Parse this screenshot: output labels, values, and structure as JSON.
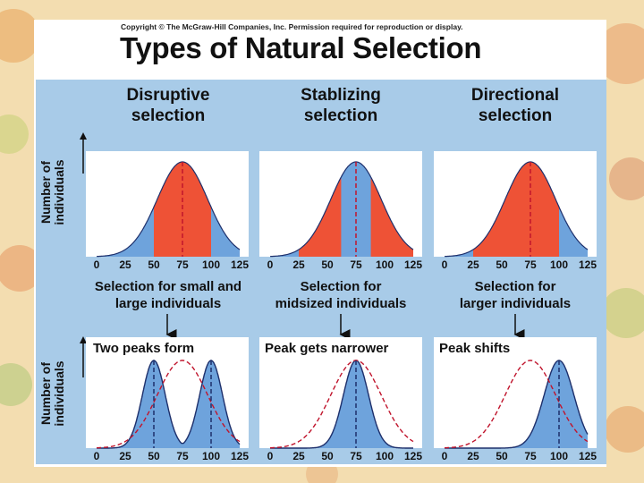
{
  "copyright": "Copyright © The McGraw-Hill Companies, Inc. Permission required for reproduction or display.",
  "title": "Types of Natural Selection",
  "y_axis_label": [
    "Number of",
    "individuals"
  ],
  "x_ticks": [
    0,
    25,
    50,
    75,
    100,
    125
  ],
  "colors": {
    "panel": "#a8cbe8",
    "plot_bg": "#ffffff",
    "blue_fill": "#6ea3dc",
    "red_fill": "#ee5236",
    "outline": "#1d2f6b",
    "original_curve": "#c0142c"
  },
  "columns": [
    {
      "id": "disruptive",
      "title": [
        "Disruptive",
        "selection"
      ],
      "caption": [
        "Selection for small and",
        "large individuals"
      ],
      "result": "Two peaks form"
    },
    {
      "id": "stabilizing",
      "title": [
        "Stablizing",
        "selection"
      ],
      "caption": [
        "Selection for",
        "midsized individuals"
      ],
      "result": "Peak gets narrower"
    },
    {
      "id": "directional",
      "title": [
        "Directional",
        "selection"
      ],
      "caption": [
        "Selection for",
        "larger individuals"
      ],
      "result": "Peak shifts"
    }
  ],
  "chart_data": [
    {
      "type": "area",
      "title": "Disruptive selection (before)",
      "xlabel": "Selection for small and large individuals",
      "ylabel": "Number of individuals",
      "x_ticks": [
        0,
        25,
        50,
        75,
        100,
        125
      ],
      "series": [
        {
          "name": "population",
          "distribution": "normal",
          "mean": 75,
          "sd": 22
        }
      ],
      "selected_against_range": [
        50,
        100
      ],
      "dashed_line_x": 75
    },
    {
      "type": "area",
      "title": "Stablizing selection (before)",
      "xlabel": "Selection for midsized individuals",
      "ylabel": "Number of individuals",
      "x_ticks": [
        0,
        25,
        50,
        75,
        100,
        125
      ],
      "series": [
        {
          "name": "population",
          "distribution": "normal",
          "mean": 75,
          "sd": 22
        }
      ],
      "selected_against_ranges": [
        [
          25,
          62
        ],
        [
          88,
          125
        ]
      ],
      "dashed_line_x": 75
    },
    {
      "type": "area",
      "title": "Directional selection (before)",
      "xlabel": "Selection for larger individuals",
      "ylabel": "Number of individuals",
      "x_ticks": [
        0,
        25,
        50,
        75,
        100,
        125
      ],
      "series": [
        {
          "name": "population",
          "distribution": "normal",
          "mean": 75,
          "sd": 22
        }
      ],
      "selected_against_range": [
        25,
        100
      ],
      "dashed_line_x": 75
    },
    {
      "type": "area",
      "title": "Two peaks form",
      "ylabel": "Number of individuals",
      "x_ticks": [
        0,
        25,
        50,
        75,
        100,
        125
      ],
      "series": [
        {
          "name": "after selection",
          "distribution": "bimodal",
          "peaks": [
            50,
            100
          ],
          "sd": 10
        },
        {
          "name": "original (dashed)",
          "distribution": "normal",
          "mean": 75,
          "sd": 22
        }
      ],
      "dashed_lines_x": [
        50,
        100
      ]
    },
    {
      "type": "area",
      "title": "Peak gets narrower",
      "ylabel": "Number of individuals",
      "x_ticks": [
        0,
        25,
        50,
        75,
        100,
        125
      ],
      "series": [
        {
          "name": "after selection",
          "distribution": "normal",
          "mean": 75,
          "sd": 11
        },
        {
          "name": "original (dashed)",
          "distribution": "normal",
          "mean": 75,
          "sd": 22
        }
      ],
      "dashed_lines_x": [
        75
      ]
    },
    {
      "type": "area",
      "title": "Peak shifts",
      "ylabel": "Number of individuals",
      "x_ticks": [
        0,
        25,
        50,
        75,
        100,
        125
      ],
      "series": [
        {
          "name": "after selection",
          "distribution": "normal",
          "mean": 100,
          "sd": 13
        },
        {
          "name": "original (dashed)",
          "distribution": "normal",
          "mean": 75,
          "sd": 22
        }
      ],
      "dashed_lines_x": [
        100
      ]
    }
  ]
}
